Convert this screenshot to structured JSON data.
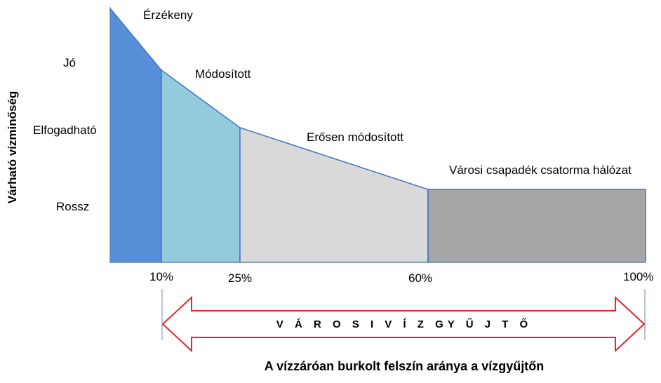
{
  "y_axis": {
    "title": "Várható vízminőség",
    "levels": [
      "Jó",
      "Elfogadható",
      "Rossz"
    ]
  },
  "regions": [
    {
      "name": "Érzékeny",
      "color": "#578fd8"
    },
    {
      "name": "Módosított",
      "color": "#93cbdd"
    },
    {
      "name": "Erősen módosított",
      "color": "#d9d9d9"
    },
    {
      "name": "Városi csapadék csatorma hálózat",
      "color": "#a6a6a6"
    }
  ],
  "x_axis": {
    "ticks": [
      "10%",
      "25%",
      "60%",
      "100%"
    ],
    "tick_values": [
      10,
      25,
      60,
      100
    ],
    "title": "A vízzáróan burkolt felszín aránya a vízgyűjtőn"
  },
  "arrow": {
    "label": "V Á R O S I V Í Z GY Ű J T Ő",
    "color": "#e8232a"
  },
  "colors": {
    "outline": "#4472c4",
    "axis": "#6d8db5"
  }
}
